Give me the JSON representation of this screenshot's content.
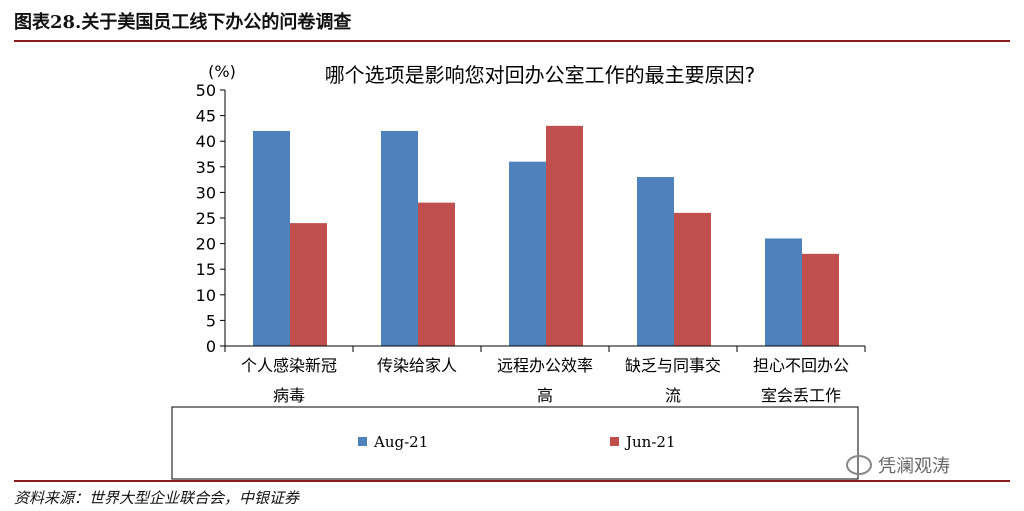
{
  "header": {
    "figure_title": "图表28.关于美国员工线下办公的问卷调查"
  },
  "footer": {
    "source": "资料来源：世界大型企业联合会，中银证券",
    "watermark": "凭澜观涛"
  },
  "colors": {
    "aug21": "#4f81bd",
    "jun21": "#c0504d",
    "rule": "#8a1d1d"
  },
  "chart_data": {
    "type": "bar",
    "title": "哪个选项是影响您对回办公室工作的最主要原因?",
    "ylabel": "(%)",
    "xlabel": "",
    "ylim": [
      0,
      50
    ],
    "yticks": [
      0,
      5,
      10,
      15,
      20,
      25,
      30,
      35,
      40,
      45,
      50
    ],
    "grid": false,
    "legend": "bottom",
    "categories": [
      [
        "个人感染新冠",
        "病毒"
      ],
      [
        "传染给家人"
      ],
      [
        "远程办公效率",
        "高"
      ],
      [
        "缺乏与同事交",
        "流"
      ],
      [
        "担心不回办公",
        "室会丢工作"
      ]
    ],
    "series": [
      {
        "name": "Aug-21",
        "color": "#4f81bd",
        "values": [
          42,
          42,
          36,
          33,
          21
        ]
      },
      {
        "name": "Jun-21",
        "color": "#c0504d",
        "values": [
          24,
          28,
          43,
          26,
          18
        ]
      }
    ]
  }
}
